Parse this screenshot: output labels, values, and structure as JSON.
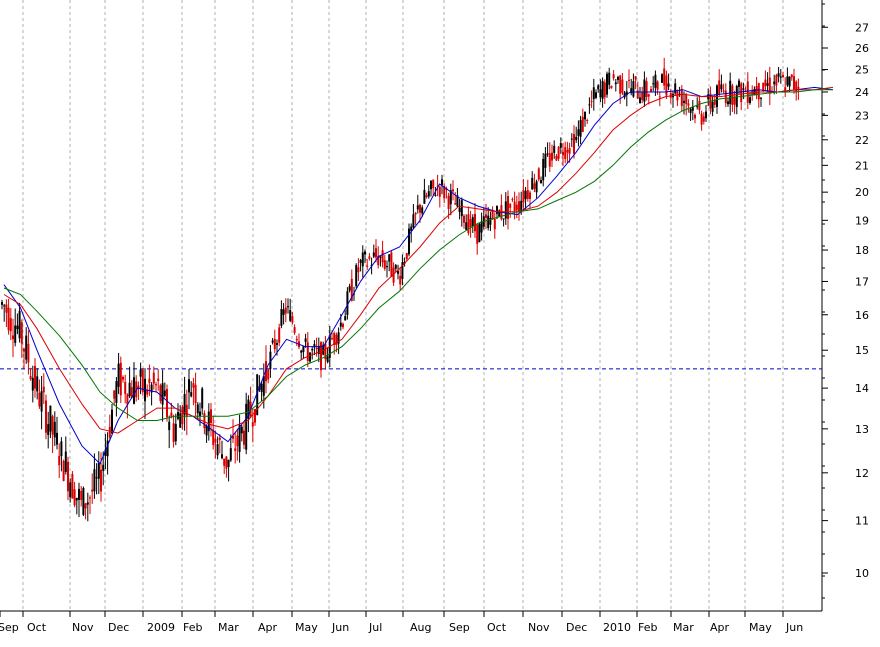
{
  "chart_data": {
    "type": "line",
    "subtype": "candlestick-with-moving-averages",
    "title": "",
    "xlabel": "",
    "ylabel": "",
    "yscale": "log",
    "ylim": [
      9.5,
      28.8
    ],
    "y_ticks": [
      10,
      11,
      12,
      13,
      14,
      15,
      16,
      17,
      18,
      19,
      20,
      21,
      22,
      23,
      24,
      25,
      26,
      27
    ],
    "x_ticks": [
      "Sep",
      "Oct",
      "Nov",
      "Dec",
      "2009",
      "Feb",
      "Mar",
      "Apr",
      "May",
      "Jun",
      "Jul",
      "Aug",
      "Sep",
      "Oct",
      "Nov",
      "Dec",
      "2010",
      "Feb",
      "Mar",
      "Apr",
      "May",
      "Jun"
    ],
    "vertical_gridlines": "dashed at month boundaries",
    "reference_line": {
      "y": 14.5,
      "style": "dashed",
      "color": "#0000cc"
    },
    "colors": {
      "up_bar": "#000000",
      "down_bar": "#dd0000",
      "ma_short": "#0000cc",
      "ma_medium": "#dd0000",
      "ma_long": "#007700"
    },
    "series": [
      {
        "kind": "ma-short",
        "color": "#0000cc",
        "x": [
          0,
          0.5,
          1,
          1.5,
          2,
          2.5,
          3,
          3.5,
          4,
          4.5,
          5,
          5.5,
          6,
          6.5,
          7,
          7.5,
          8,
          8.5,
          9,
          9.5,
          10,
          10.5,
          11,
          11.5,
          12,
          12.5,
          13,
          13.5,
          14,
          14.5,
          15,
          15.5,
          16,
          16.5,
          17,
          17.5,
          18,
          18.5,
          19,
          19.5,
          20,
          20.5,
          21,
          21.5,
          22
        ],
        "values": [
          16.9,
          16.2,
          15.0,
          13.6,
          12.6,
          12.2,
          13.2,
          14.0,
          13.9,
          13.5,
          13.3,
          13.0,
          12.7,
          13.3,
          14.6,
          15.3,
          15.1,
          15.1,
          16.0,
          17.0,
          17.8,
          18.1,
          19.0,
          20.3,
          19.8,
          19.5,
          19.3,
          19.2,
          19.8,
          20.6,
          21.5,
          22.6,
          23.5,
          24.0,
          24.0,
          24.0,
          24.1,
          23.8,
          23.9,
          24.0,
          24.1,
          24.0,
          24.1,
          24.2,
          24.1
        ]
      },
      {
        "kind": "ma-medium",
        "color": "#dd0000",
        "x": [
          0,
          0.5,
          1,
          1.5,
          2,
          2.5,
          3,
          3.5,
          4,
          4.5,
          5,
          5.5,
          6,
          6.5,
          7,
          7.5,
          8,
          8.5,
          9,
          9.5,
          10,
          10.5,
          11,
          11.5,
          12,
          12.5,
          13,
          13.5,
          14,
          14.5,
          15,
          15.5,
          16,
          16.5,
          17,
          17.5,
          18,
          18.5,
          19,
          19.5,
          20,
          20.5,
          21,
          21.5,
          22
        ],
        "values": [
          16.6,
          16.3,
          15.6,
          14.5,
          13.6,
          13.0,
          12.9,
          13.2,
          13.5,
          13.5,
          13.3,
          13.1,
          13.0,
          13.2,
          13.8,
          14.5,
          14.8,
          15.0,
          15.3,
          16.0,
          16.8,
          17.4,
          18.1,
          18.9,
          19.5,
          19.4,
          19.3,
          19.3,
          19.5,
          20.0,
          20.7,
          21.5,
          22.4,
          23.0,
          23.5,
          23.8,
          23.9,
          23.8,
          23.8,
          23.9,
          24.0,
          24.0,
          24.1,
          24.1,
          24.2
        ]
      },
      {
        "kind": "ma-long",
        "color": "#007700",
        "x": [
          0,
          0.5,
          1,
          1.5,
          2,
          2.5,
          3,
          3.5,
          4,
          4.5,
          5,
          5.5,
          6,
          6.5,
          7,
          7.5,
          8,
          8.5,
          9,
          9.5,
          10,
          10.5,
          11,
          11.5,
          12,
          12.5,
          13,
          13.5,
          14,
          14.5,
          15,
          15.5,
          16,
          16.5,
          17,
          17.5,
          18,
          18.5,
          19,
          19.5,
          20,
          20.5,
          21,
          21.5,
          22
        ],
        "values": [
          16.8,
          16.6,
          16.1,
          15.4,
          14.6,
          13.9,
          13.5,
          13.2,
          13.2,
          13.3,
          13.3,
          13.3,
          13.3,
          13.4,
          13.8,
          14.3,
          14.6,
          14.8,
          15.1,
          15.6,
          16.2,
          16.7,
          17.4,
          18.0,
          18.5,
          18.9,
          19.1,
          19.3,
          19.4,
          19.7,
          20.0,
          20.4,
          21.0,
          21.7,
          22.3,
          22.8,
          23.2,
          23.5,
          23.7,
          23.8,
          23.9,
          24.0,
          24.0,
          24.1,
          24.1
        ]
      },
      {
        "kind": "price-bars",
        "description": "daily OHLC candlesticks",
        "x": [
          0,
          0.5,
          1,
          1.5,
          2,
          2.5,
          3,
          3.5,
          4,
          4.5,
          5,
          5.5,
          6,
          6.5,
          7,
          7.5,
          8,
          8.5,
          9,
          9.5,
          10,
          10.5,
          11,
          11.5,
          12,
          12.5,
          13,
          13.5,
          14,
          14.5,
          15,
          15.5,
          16,
          16.5,
          17,
          17.5,
          18,
          18.5,
          19,
          19.5,
          20,
          20.5,
          21,
          21.5,
          22
        ],
        "values": [
          16.3,
          15.5,
          14.0,
          12.5,
          11.3,
          11.8,
          14.2,
          14.0,
          14.0,
          13.0,
          14.2,
          13.0,
          12.2,
          13.2,
          14.5,
          16.2,
          15.0,
          14.8,
          15.8,
          17.5,
          17.8,
          17.2,
          19.5,
          20.3,
          19.4,
          18.6,
          19.2,
          19.6,
          20.6,
          21.6,
          22.0,
          23.7,
          24.6,
          24.2,
          24.0,
          24.5,
          23.8,
          23.0,
          24.0,
          24.0,
          24.2,
          24.4,
          24.3,
          24.5,
          25.3
        ]
      }
    ]
  }
}
